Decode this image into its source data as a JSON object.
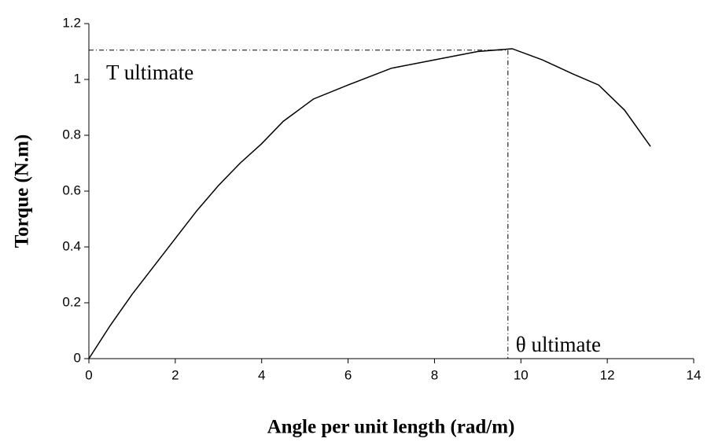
{
  "chart_data": {
    "type": "line",
    "x_label": "Angle per unit length (rad/m)",
    "y_label": "Torque (N.m)",
    "x": [
      0,
      0.5,
      1,
      1.5,
      2,
      2.5,
      3,
      3.5,
      4,
      4.5,
      5.2,
      6,
      7,
      8,
      9,
      9.8,
      10.5,
      11.2,
      11.8,
      12.4,
      13
    ],
    "series": [
      {
        "name": "Torque",
        "color": "#000000",
        "values": [
          0,
          0.12,
          0.23,
          0.33,
          0.43,
          0.53,
          0.62,
          0.7,
          0.77,
          0.85,
          0.93,
          0.98,
          1.04,
          1.07,
          1.1,
          1.11,
          1.07,
          1.02,
          0.98,
          0.89,
          0.76
        ]
      }
    ],
    "xlim": [
      0,
      14
    ],
    "xticks": [
      0,
      2,
      4,
      6,
      8,
      10,
      12,
      14
    ],
    "ylim": [
      0,
      1.2
    ],
    "yticks": [
      0,
      0.2,
      0.4,
      0.6,
      0.8,
      1,
      1.2
    ],
    "grid": false,
    "annotations": {
      "torque_label": "T ultimate",
      "angle_label": "θ ultimate",
      "ultimate_x": 9.7,
      "ultimate_y": 1.105
    }
  }
}
